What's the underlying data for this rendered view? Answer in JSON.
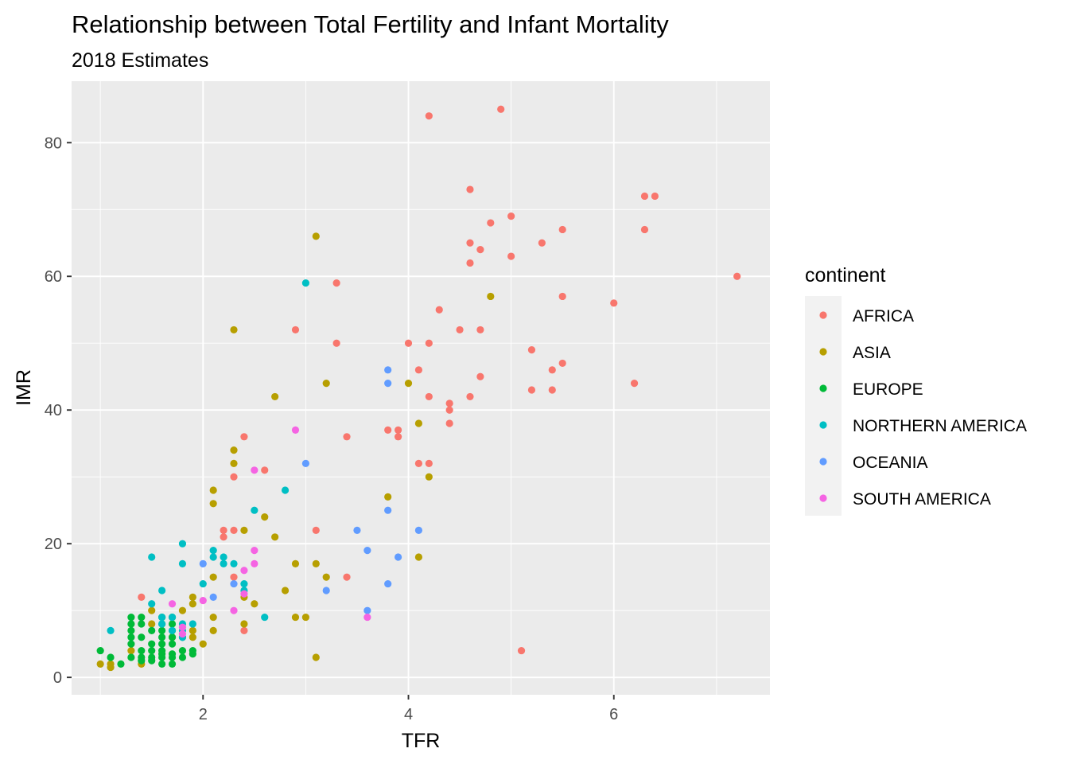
{
  "chart_data": {
    "type": "scatter",
    "title": "Relationship between Total Fertility and Infant Mortality",
    "subtitle": "2018 Estimates",
    "xlabel": "TFR",
    "ylabel": "IMR",
    "xlim": [
      0.72,
      7.52
    ],
    "ylim": [
      -2.6,
      89.2
    ],
    "xticks": [
      2,
      4,
      6
    ],
    "yticks": [
      0,
      20,
      40,
      60,
      80
    ],
    "x_minor": [
      1,
      3,
      5,
      7
    ],
    "y_minor": [
      10,
      30,
      50,
      70
    ],
    "grid": true,
    "legend_title": "continent",
    "legend_position": "right",
    "series": [
      {
        "name": "AFRICA",
        "color": "#F8766D",
        "points": [
          [
            4.2,
            84
          ],
          [
            4.9,
            85
          ],
          [
            4.6,
            73
          ],
          [
            6.3,
            72
          ],
          [
            6.4,
            72
          ],
          [
            7.2,
            60
          ],
          [
            5.0,
            69
          ],
          [
            4.8,
            68
          ],
          [
            6.3,
            67
          ],
          [
            5.5,
            67
          ],
          [
            5.3,
            65
          ],
          [
            4.6,
            65
          ],
          [
            4.7,
            64
          ],
          [
            5.0,
            63
          ],
          [
            4.6,
            62
          ],
          [
            3.3,
            59
          ],
          [
            5.5,
            57
          ],
          [
            6.0,
            56
          ],
          [
            4.3,
            55
          ],
          [
            4.5,
            52
          ],
          [
            4.7,
            52
          ],
          [
            2.9,
            52
          ],
          [
            3.3,
            50
          ],
          [
            4.0,
            50
          ],
          [
            4.2,
            50
          ],
          [
            5.2,
            49
          ],
          [
            5.5,
            47
          ],
          [
            4.1,
            46
          ],
          [
            5.4,
            46
          ],
          [
            4.7,
            45
          ],
          [
            6.2,
            44
          ],
          [
            5.2,
            43
          ],
          [
            5.4,
            43
          ],
          [
            4.2,
            42
          ],
          [
            4.6,
            42
          ],
          [
            4.4,
            41
          ],
          [
            4.4,
            40
          ],
          [
            4.4,
            38
          ],
          [
            3.8,
            37
          ],
          [
            3.9,
            37
          ],
          [
            3.9,
            36
          ],
          [
            3.4,
            36
          ],
          [
            2.4,
            36
          ],
          [
            4.1,
            32
          ],
          [
            4.2,
            32
          ],
          [
            2.6,
            31
          ],
          [
            2.3,
            30
          ],
          [
            2.2,
            22
          ],
          [
            2.3,
            22
          ],
          [
            3.1,
            22
          ],
          [
            2.2,
            21
          ],
          [
            2.3,
            15
          ],
          [
            3.4,
            15
          ],
          [
            1.4,
            12
          ],
          [
            2.4,
            7
          ],
          [
            5.1,
            4
          ]
        ]
      },
      {
        "name": "ASIA",
        "color": "#B79F00",
        "points": [
          [
            3.1,
            66
          ],
          [
            4.8,
            57
          ],
          [
            2.3,
            52
          ],
          [
            3.2,
            44
          ],
          [
            4.0,
            44
          ],
          [
            2.7,
            42
          ],
          [
            4.1,
            38
          ],
          [
            2.3,
            34
          ],
          [
            2.3,
            32
          ],
          [
            4.2,
            30
          ],
          [
            2.1,
            28
          ],
          [
            3.8,
            27
          ],
          [
            2.1,
            26
          ],
          [
            2.6,
            24
          ],
          [
            2.4,
            22
          ],
          [
            2.7,
            21
          ],
          [
            4.1,
            18
          ],
          [
            2.9,
            17
          ],
          [
            3.1,
            17
          ],
          [
            2.1,
            15
          ],
          [
            3.2,
            15
          ],
          [
            2.8,
            13
          ],
          [
            1.9,
            12
          ],
          [
            1.9,
            11
          ],
          [
            2.5,
            11
          ],
          [
            1.8,
            10
          ],
          [
            1.5,
            10
          ],
          [
            2.1,
            9
          ],
          [
            2.9,
            9
          ],
          [
            3.0,
            9
          ],
          [
            1.5,
            8
          ],
          [
            2.4,
            8
          ],
          [
            1.9,
            7
          ],
          [
            2.1,
            7
          ],
          [
            1.7,
            6
          ],
          [
            1.9,
            6
          ],
          [
            2.0,
            5
          ],
          [
            1.3,
            4
          ],
          [
            1.4,
            2
          ],
          [
            1.1,
            2
          ],
          [
            1.0,
            2
          ],
          [
            1.1,
            1.5
          ],
          [
            3.1,
            3
          ],
          [
            2.4,
            12
          ]
        ]
      },
      {
        "name": "EUROPE",
        "color": "#00BA38",
        "points": [
          [
            1.3,
            9
          ],
          [
            1.4,
            9
          ],
          [
            1.6,
            9
          ],
          [
            1.7,
            9
          ],
          [
            1.3,
            8
          ],
          [
            1.4,
            8
          ],
          [
            1.6,
            8
          ],
          [
            1.7,
            8
          ],
          [
            1.3,
            7
          ],
          [
            1.5,
            7
          ],
          [
            1.6,
            7
          ],
          [
            1.7,
            7
          ],
          [
            1.3,
            6
          ],
          [
            1.4,
            6
          ],
          [
            1.6,
            6
          ],
          [
            1.7,
            6
          ],
          [
            1.8,
            6
          ],
          [
            1.3,
            5
          ],
          [
            1.5,
            5
          ],
          [
            1.6,
            5
          ],
          [
            1.7,
            5
          ],
          [
            1.4,
            4
          ],
          [
            1.5,
            4
          ],
          [
            1.6,
            4
          ],
          [
            1.8,
            4
          ],
          [
            1.9,
            4
          ],
          [
            1.0,
            4
          ],
          [
            1.3,
            3
          ],
          [
            1.4,
            3
          ],
          [
            1.5,
            3
          ],
          [
            1.6,
            3
          ],
          [
            1.7,
            3
          ],
          [
            1.8,
            3
          ],
          [
            1.1,
            3
          ],
          [
            1.4,
            2.5
          ],
          [
            1.5,
            2.5
          ],
          [
            1.6,
            2
          ],
          [
            1.7,
            2
          ],
          [
            1.2,
            2
          ],
          [
            1.6,
            3.5
          ],
          [
            1.7,
            3.5
          ],
          [
            1.9,
            3.5
          ]
        ]
      },
      {
        "name": "NORTHERN AMERICA",
        "color": "#00BFC4",
        "points": [
          [
            3.0,
            59
          ],
          [
            2.8,
            28
          ],
          [
            2.5,
            25
          ],
          [
            1.8,
            20
          ],
          [
            2.1,
            19
          ],
          [
            1.5,
            18
          ],
          [
            2.1,
            18
          ],
          [
            2.2,
            18
          ],
          [
            1.8,
            17
          ],
          [
            2.2,
            17
          ],
          [
            2.3,
            17
          ],
          [
            2.0,
            14
          ],
          [
            2.4,
            14
          ],
          [
            1.6,
            13
          ],
          [
            2.4,
            13
          ],
          [
            1.5,
            11
          ],
          [
            1.6,
            9
          ],
          [
            2.6,
            9
          ],
          [
            1.6,
            8
          ],
          [
            1.8,
            8
          ],
          [
            1.9,
            8
          ],
          [
            1.1,
            7
          ],
          [
            1.7,
            7
          ],
          [
            1.8,
            7
          ],
          [
            1.8,
            6
          ],
          [
            1.7,
            9
          ]
        ]
      },
      {
        "name": "OCEANIA",
        "color": "#619CFF",
        "points": [
          [
            3.8,
            46
          ],
          [
            3.8,
            44
          ],
          [
            3.0,
            32
          ],
          [
            3.8,
            25
          ],
          [
            3.5,
            22
          ],
          [
            4.1,
            22
          ],
          [
            3.6,
            19
          ],
          [
            3.9,
            18
          ],
          [
            2.0,
            17
          ],
          [
            2.3,
            14
          ],
          [
            3.8,
            14
          ],
          [
            3.2,
            13
          ],
          [
            2.1,
            12
          ],
          [
            3.6,
            10
          ]
        ]
      },
      {
        "name": "SOUTH AMERICA",
        "color": "#F564E3",
        "points": [
          [
            2.9,
            37
          ],
          [
            2.5,
            31
          ],
          [
            2.5,
            19
          ],
          [
            2.5,
            17
          ],
          [
            2.4,
            16
          ],
          [
            2.4,
            12.5
          ],
          [
            2.0,
            11.5
          ],
          [
            1.7,
            11
          ],
          [
            2.3,
            10
          ],
          [
            3.6,
            9
          ],
          [
            1.8,
            7.5
          ],
          [
            1.8,
            6.5
          ]
        ]
      }
    ]
  }
}
